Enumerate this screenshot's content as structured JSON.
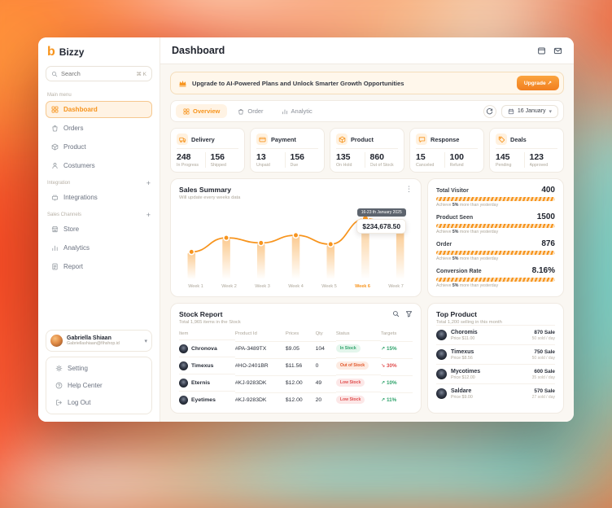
{
  "colors": {
    "accent": "#F7941D",
    "green": "#2FA36B",
    "red": "#E04F4F",
    "banner-bg": "#FFF7EB"
  },
  "app": {
    "name": "Bizzy"
  },
  "sidebar": {
    "search": {
      "placeholder": "Search",
      "shortcut": "⌘ K"
    },
    "sections": [
      {
        "label": "Main menu",
        "items": [
          {
            "label": "Dashboard"
          },
          {
            "label": "Orders"
          },
          {
            "label": "Product"
          },
          {
            "label": "Costumers"
          }
        ]
      },
      {
        "label": "Integration",
        "items": [
          {
            "label": "Integrations"
          }
        ]
      },
      {
        "label": "Sales Channels",
        "items": [
          {
            "label": "Store"
          },
          {
            "label": "Analytics"
          },
          {
            "label": "Report"
          }
        ]
      }
    ],
    "user": {
      "name": "Gabriella Shiaan",
      "email": "Gabriellashiaan@fihshop.id"
    },
    "footer": [
      {
        "label": "Setting"
      },
      {
        "label": "Help Center"
      },
      {
        "label": "Log Out"
      }
    ]
  },
  "header": {
    "title": "Dashboard"
  },
  "banner": {
    "text": "Upgrade to AI-Powered Plans and Unlock Smarter Growth Opportunities",
    "button": "Upgrade ↗"
  },
  "toolbar": {
    "tabs": [
      {
        "label": "Overview"
      },
      {
        "label": "Order"
      },
      {
        "label": "Analytic"
      }
    ],
    "date": "16 January"
  },
  "stats": [
    {
      "title": "Delivery",
      "metrics": [
        {
          "value": "248",
          "label": "In Progress"
        },
        {
          "value": "156",
          "label": "Shipped"
        }
      ]
    },
    {
      "title": "Payment",
      "metrics": [
        {
          "value": "13",
          "label": "Unpaid"
        },
        {
          "value": "156",
          "label": "Due"
        }
      ]
    },
    {
      "title": "Product",
      "metrics": [
        {
          "value": "135",
          "label": "On Hold"
        },
        {
          "value": "860",
          "label": "Out of Stock"
        }
      ]
    },
    {
      "title": "Response",
      "metrics": [
        {
          "value": "15",
          "label": "Canceled"
        },
        {
          "value": "100",
          "label": "Refund"
        }
      ]
    },
    {
      "title": "Deals",
      "metrics": [
        {
          "value": "145",
          "label": "Pending"
        },
        {
          "value": "123",
          "label": "Approved"
        }
      ]
    }
  ],
  "sales_summary": {
    "title": "Sales Summary",
    "subtitle": "Will update every weeks data",
    "tooltip": {
      "date": "16-23 th January 2025",
      "value": "$234,678.50"
    },
    "chart_data": {
      "type": "line",
      "categories": [
        "Week 1",
        "Week 2",
        "Week 3",
        "Week 4",
        "Week 5",
        "Week 6",
        "Week 7"
      ],
      "values": [
        38,
        60,
        52,
        64,
        50,
        90,
        72
      ],
      "ylim": [
        0,
        100
      ],
      "highlight_index": 5,
      "highlight_label": "Week 6",
      "highlight_value": "$234,678.50"
    }
  },
  "kpis": [
    {
      "label": "Total Visitor",
      "value": "400",
      "note": {
        "prefix": "Achieve",
        "pct": "5%",
        "suffix": "more  than yesterday"
      }
    },
    {
      "label": "Product Seen",
      "value": "1500",
      "note": {
        "prefix": "Achieve",
        "pct": "5%",
        "suffix": "more  than yesterday"
      }
    },
    {
      "label": "Order",
      "value": "876",
      "note": {
        "prefix": "Achieve",
        "pct": "5%",
        "suffix": "more  than yesterday"
      }
    },
    {
      "label": "Conversion Rate",
      "value": "8.16%",
      "note": {
        "prefix": "Achieve",
        "pct": "5%",
        "suffix": "more  than yesterday"
      }
    }
  ],
  "stock_report": {
    "title": "Stock Report",
    "subtitle": "Total 1,965 items in the Stock",
    "columns": [
      "Item",
      "Product Id",
      "Prices",
      "Qty",
      "Status",
      "Targets"
    ],
    "rows": [
      {
        "item": "Chronova",
        "product_id": "#PA-3489TX",
        "price": "$9.05",
        "qty": "104",
        "status": "In Stock",
        "trend": "15%",
        "trend_dir": "up"
      },
      {
        "item": "Timexus",
        "product_id": "#HO-2401BR",
        "price": "$11.56",
        "qty": "0",
        "status": "Out of Stock",
        "trend": "30%",
        "trend_dir": "down"
      },
      {
        "item": "Eternis",
        "product_id": "#KJ-9283DK",
        "price": "$12.00",
        "qty": "49",
        "status": "Low Stock",
        "trend": "10%",
        "trend_dir": "up"
      },
      {
        "item": "Eyetimes",
        "product_id": "#KJ-9283DK",
        "price": "$12.00",
        "qty": "20",
        "status": "Low Stock",
        "trend": "11%",
        "trend_dir": "up"
      }
    ]
  },
  "top_product": {
    "title": "Top Product",
    "subtitle": "Total 1,200 selling in this month",
    "items": [
      {
        "name": "Choromis",
        "price": "Price $11.00",
        "sold": "50 sold / day",
        "sales": "870 Sale"
      },
      {
        "name": "Timexus",
        "price": "Price $8.56",
        "sold": "50 sold / day",
        "sales": "750 Sale"
      },
      {
        "name": "Mycotimes",
        "price": "Price $12.00",
        "sold": "35 sold / day",
        "sales": "600 Sale"
      },
      {
        "name": "Saldare",
        "price": "Price $9.00",
        "sold": "27 sold / day",
        "sales": "570 Sale"
      }
    ]
  }
}
